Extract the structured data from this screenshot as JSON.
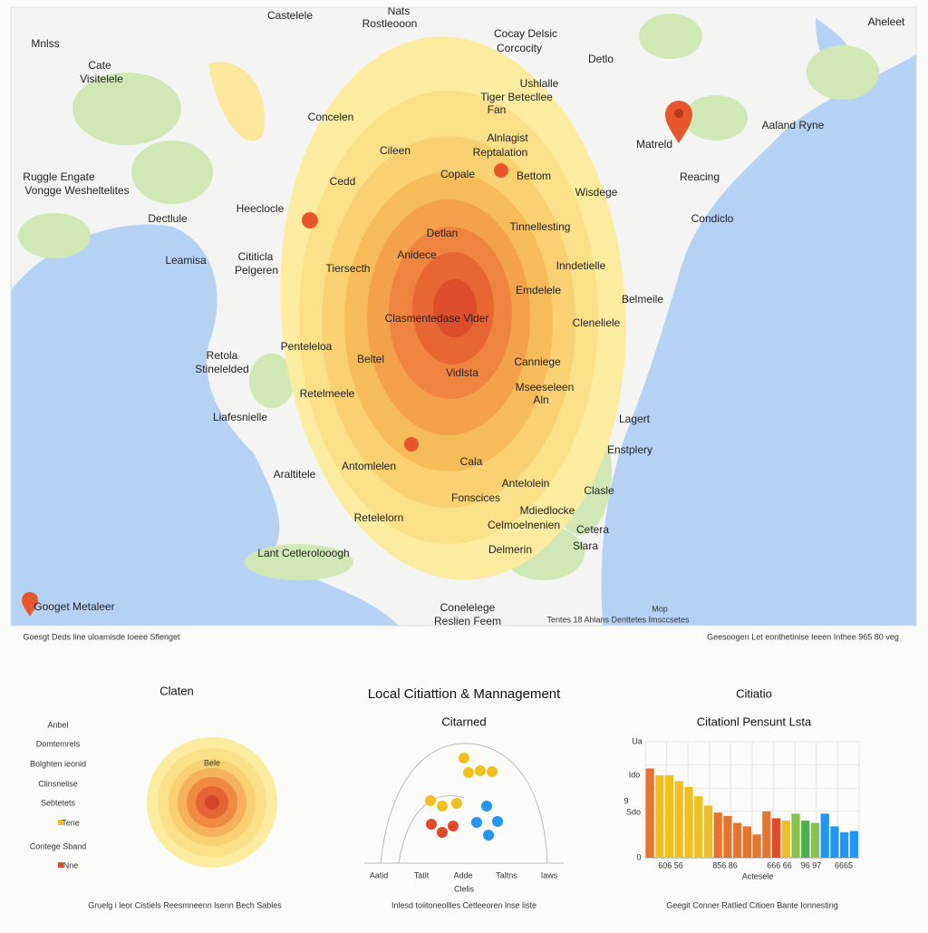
{
  "map": {
    "labels": [
      "Castelele",
      "Nats",
      "Rostleooon",
      "Mnlss",
      "Cate",
      "Visitelele",
      "Cocay Delsic",
      "Corcocity",
      "Detlo",
      "Aheleet",
      "Ushlalle",
      "Tiger Betecllee",
      "Fan",
      "Concelen",
      "Matreld",
      "Aaland Ryne",
      "Cileen",
      "Alnlagist",
      "Reptalation",
      "Copale",
      "Bettom",
      "Cedd",
      "Reacing",
      "Ruggle Engate",
      "Vongge Wesheltelites",
      "Wisdege",
      "Heeclocle",
      "Dectlule",
      "Condiclo",
      "Detlan",
      "Tinnellesting",
      "Anidece",
      "Leamisa",
      "Cititicla",
      "Pelgeren",
      "Tiersecth",
      "Inndetielle",
      "Emdelele",
      "Belmeile",
      "Clasmentedase Vlder",
      "Cleneliele",
      "Penteleloa",
      "Retola",
      "Stinelelded",
      "Beltel",
      "Vidlsta",
      "Canniege",
      "Mseeseleen",
      "Aln",
      "Retelmeele",
      "Liafesnielle",
      "Lagert",
      "Enstplery",
      "Antomlelen",
      "Cala",
      "Araltitele",
      "Antelolein",
      "Clasle",
      "Fonscices",
      "Mdiedlocke",
      "Retelelorn",
      "Celmoelnenien",
      "Cetera",
      "Delmerin",
      "Slara",
      "Lant Cetlerolooogh",
      "Conelelege",
      "Reslien Feem",
      "Mop",
      "Tentes 18 Ahlans Denttetes Imsccsetes"
    ],
    "brand": "Googet Metaleer",
    "footer_left": "Goesgt Deds line uloamisde Ioeee Sflenget",
    "footer_right": "Geesoogen Let eonthetinise leeen Inthee 965 80 veg"
  },
  "panel_left": {
    "title": "Claten",
    "items": [
      "Anbel",
      "Domtemrels",
      "Bolghten ieonid",
      "Clinsnelise",
      "Sebtetets",
      "Tene",
      "Contege Sband",
      "Nne"
    ],
    "circle_label": "Bele",
    "footer": "Gruelg i leor Cistiels Reesmneenn lsenn Bech Sables"
  },
  "panel_middle": {
    "heading": "Local Citiattion & Mannagement",
    "title": "Citarned",
    "x_labels": [
      "Aatid",
      "Tatit",
      "Adde",
      "Taltns",
      "Iaws"
    ],
    "x_title": "Clelis",
    "footer": "Inlesd toiitoneollles Cetleeoren lnse liste"
  },
  "panel_right": {
    "heading": "Citiatio",
    "title": "Citationl Pensunt Lsta",
    "y_labels": [
      "Ua",
      "Ido",
      "9",
      "Sdo",
      "0"
    ],
    "x_labels": [
      "606 56",
      "856 86",
      "666 66",
      "96 97",
      "6665"
    ],
    "x_title": "Actesele",
    "footer": "Geegit Conner Ratlied Citioen Bante Ionnesting",
    "ylim": [
      0,
      100
    ],
    "values": [
      77,
      71,
      71,
      66,
      61,
      53,
      45,
      39,
      36,
      30,
      27,
      20,
      40,
      34,
      32,
      38,
      32,
      30,
      38,
      27,
      22,
      23
    ],
    "colors": [
      "#e8732b",
      "#f2c01e",
      "#f2c01e",
      "#f2c01e",
      "#f2c01e",
      "#f2c01e",
      "#f2c01e",
      "#e8732b",
      "#e8732b",
      "#e8732b",
      "#e8732b",
      "#e8732b",
      "#e8732b",
      "#e24a2a",
      "#f2c01e",
      "#8bc34a",
      "#4caf50",
      "#8bc34a",
      "#2196f3",
      "#2196f3",
      "#2196f3",
      "#2196f3"
    ]
  }
}
